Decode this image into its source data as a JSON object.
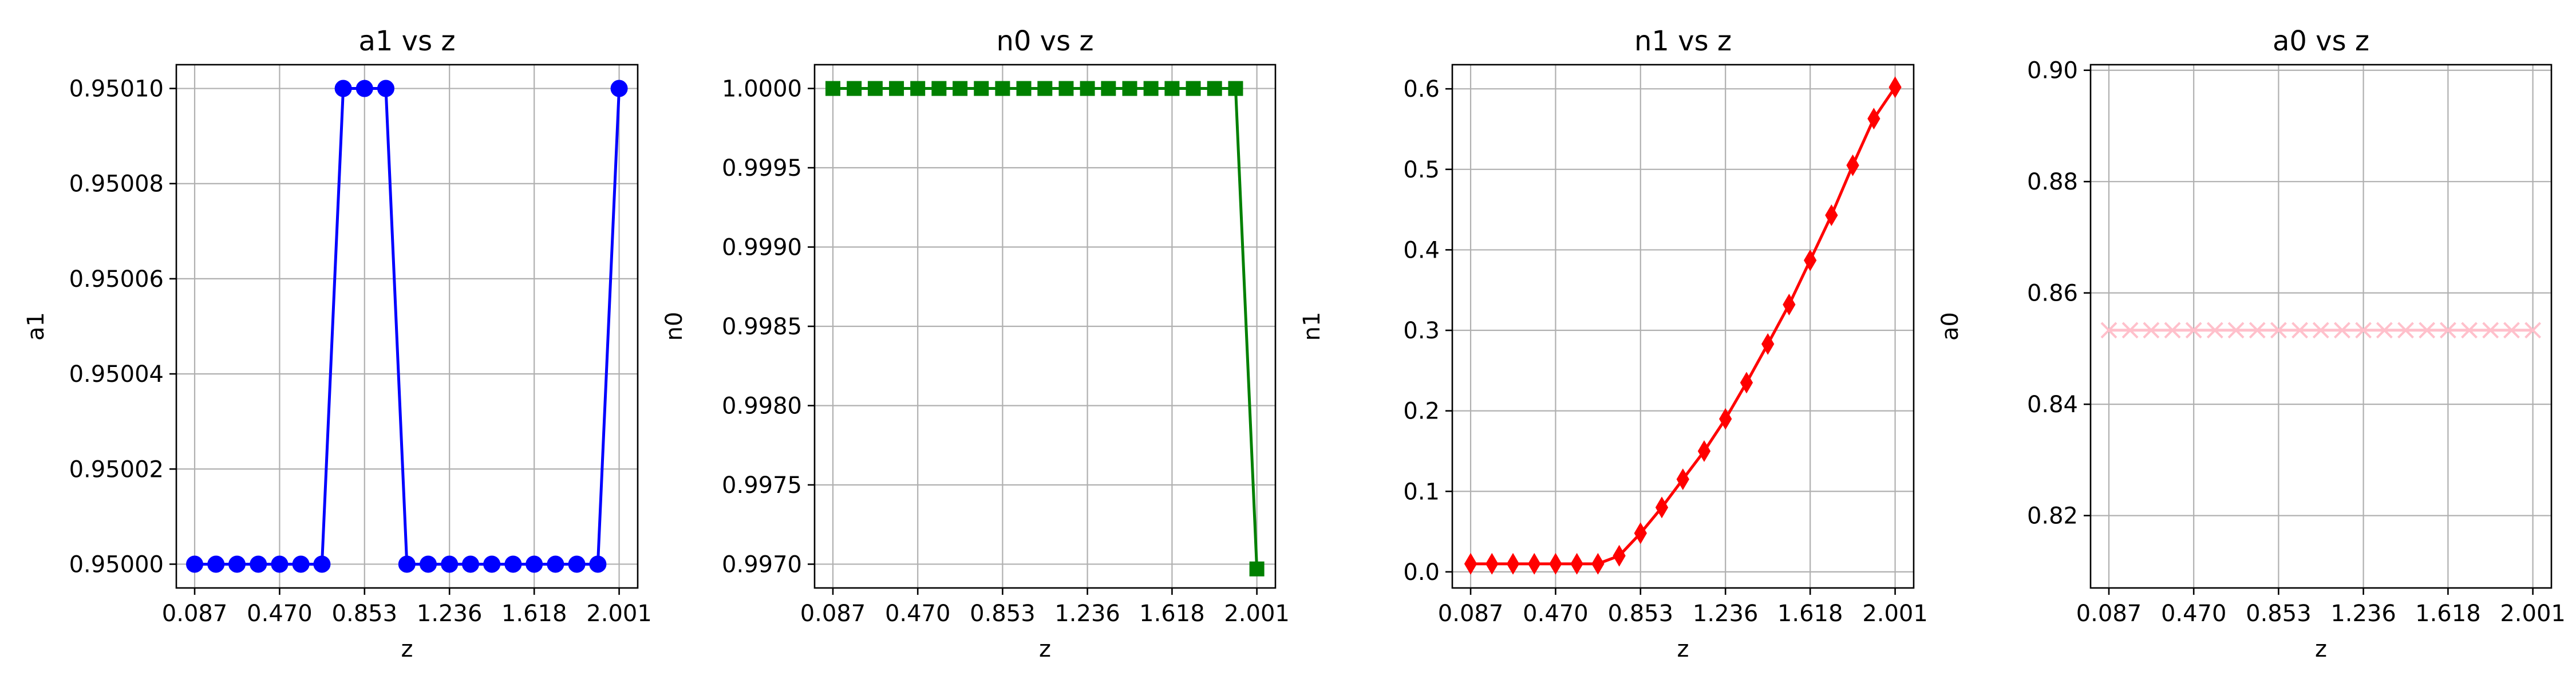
{
  "chart_data": [
    {
      "type": "line",
      "title": "a1 vs z",
      "xlabel": "z",
      "ylabel": "a1",
      "xlim": [
        0.0043,
        2.0847
      ],
      "ylim": [
        0.949995,
        0.950105
      ],
      "xticks": [
        0.087,
        0.47,
        0.853,
        1.236,
        1.618,
        2.001
      ],
      "xtick_labels": [
        "0.087",
        "0.470",
        "0.853",
        "1.236",
        "1.618",
        "2.001"
      ],
      "yticks": [
        0.95,
        0.95002,
        0.95004,
        0.95006,
        0.95008,
        0.9501
      ],
      "ytick_labels": [
        "0.95000",
        "0.95002",
        "0.95004",
        "0.95006",
        "0.95008",
        "0.95010"
      ],
      "grid": true,
      "series": [
        {
          "color": "#0000ff",
          "marker": "circle",
          "x": [
            0.087,
            0.183,
            0.278,
            0.374,
            0.47,
            0.566,
            0.661,
            0.757,
            0.853,
            0.949,
            1.044,
            1.14,
            1.236,
            1.331,
            1.427,
            1.523,
            1.618,
            1.714,
            1.81,
            1.905,
            2.001
          ],
          "values": [
            0.95,
            0.95,
            0.95,
            0.95,
            0.95,
            0.95,
            0.95,
            0.9501,
            0.9501,
            0.9501,
            0.95,
            0.95,
            0.95,
            0.95,
            0.95,
            0.95,
            0.95,
            0.95,
            0.95,
            0.95,
            0.9501
          ]
        }
      ]
    },
    {
      "type": "line",
      "title": "n0 vs z",
      "xlabel": "z",
      "ylabel": "n0",
      "xlim": [
        0.0043,
        2.0847
      ],
      "ylim": [
        0.99685,
        1.00015
      ],
      "xticks": [
        0.087,
        0.47,
        0.853,
        1.236,
        1.618,
        2.001
      ],
      "xtick_labels": [
        "0.087",
        "0.470",
        "0.853",
        "1.236",
        "1.618",
        "2.001"
      ],
      "yticks": [
        0.997,
        0.9975,
        0.998,
        0.9985,
        0.999,
        0.9995,
        1.0
      ],
      "ytick_labels": [
        "0.9970",
        "0.9975",
        "0.9980",
        "0.9985",
        "0.9990",
        "0.9995",
        "1.0000"
      ],
      "grid": true,
      "series": [
        {
          "color": "#008000",
          "marker": "square",
          "x": [
            0.087,
            0.183,
            0.278,
            0.374,
            0.47,
            0.566,
            0.661,
            0.757,
            0.853,
            0.949,
            1.044,
            1.14,
            1.236,
            1.331,
            1.427,
            1.523,
            1.618,
            1.714,
            1.81,
            1.905,
            2.001
          ],
          "values": [
            1.0,
            1.0,
            1.0,
            1.0,
            1.0,
            1.0,
            1.0,
            1.0,
            1.0,
            1.0,
            1.0,
            1.0,
            1.0,
            1.0,
            1.0,
            1.0,
            1.0,
            1.0,
            1.0,
            1.0,
            0.99697
          ]
        }
      ]
    },
    {
      "type": "line",
      "title": "n1 vs z",
      "xlabel": "z",
      "ylabel": "n1",
      "xlim": [
        0.0043,
        2.0847
      ],
      "ylim": [
        -0.02,
        0.63
      ],
      "xticks": [
        0.087,
        0.47,
        0.853,
        1.236,
        1.618,
        2.001
      ],
      "xtick_labels": [
        "0.087",
        "0.470",
        "0.853",
        "1.236",
        "1.618",
        "2.001"
      ],
      "yticks": [
        0.0,
        0.1,
        0.2,
        0.3,
        0.4,
        0.5,
        0.6
      ],
      "ytick_labels": [
        "0.0",
        "0.1",
        "0.2",
        "0.3",
        "0.4",
        "0.5",
        "0.6"
      ],
      "grid": true,
      "series": [
        {
          "color": "#ff0000",
          "marker": "diamond",
          "x": [
            0.087,
            0.183,
            0.278,
            0.374,
            0.47,
            0.566,
            0.661,
            0.757,
            0.853,
            0.949,
            1.044,
            1.14,
            1.236,
            1.331,
            1.427,
            1.523,
            1.618,
            1.714,
            1.81,
            1.905,
            2.001
          ],
          "values": [
            0.01,
            0.01,
            0.01,
            0.01,
            0.01,
            0.01,
            0.01,
            0.02,
            0.048,
            0.08,
            0.115,
            0.15,
            0.19,
            0.235,
            0.283,
            0.332,
            0.387,
            0.443,
            0.505,
            0.563,
            0.602
          ]
        }
      ]
    },
    {
      "type": "line",
      "title": "a0 vs z",
      "xlabel": "z",
      "ylabel": "a0",
      "xlim": [
        0.0043,
        2.0847
      ],
      "ylim": [
        0.807,
        0.901
      ],
      "xticks": [
        0.087,
        0.47,
        0.853,
        1.236,
        1.618,
        2.001
      ],
      "xtick_labels": [
        "0.087",
        "0.470",
        "0.853",
        "1.236",
        "1.618",
        "2.001"
      ],
      "yticks": [
        0.82,
        0.84,
        0.86,
        0.88,
        0.9
      ],
      "ytick_labels": [
        "0.82",
        "0.84",
        "0.86",
        "0.88",
        "0.90"
      ],
      "grid": true,
      "series": [
        {
          "color": "#ffc0cb",
          "marker": "x",
          "x": [
            0.087,
            0.183,
            0.278,
            0.374,
            0.47,
            0.566,
            0.661,
            0.757,
            0.853,
            0.949,
            1.044,
            1.14,
            1.236,
            1.331,
            1.427,
            1.523,
            1.618,
            1.714,
            1.81,
            1.905,
            2.001
          ],
          "values": [
            0.8533,
            0.8533,
            0.8533,
            0.8533,
            0.8533,
            0.8533,
            0.8533,
            0.8533,
            0.8533,
            0.8533,
            0.8533,
            0.8533,
            0.8533,
            0.8533,
            0.8533,
            0.8533,
            0.8533,
            0.8533,
            0.8533,
            0.8533,
            0.8533
          ]
        }
      ]
    }
  ]
}
